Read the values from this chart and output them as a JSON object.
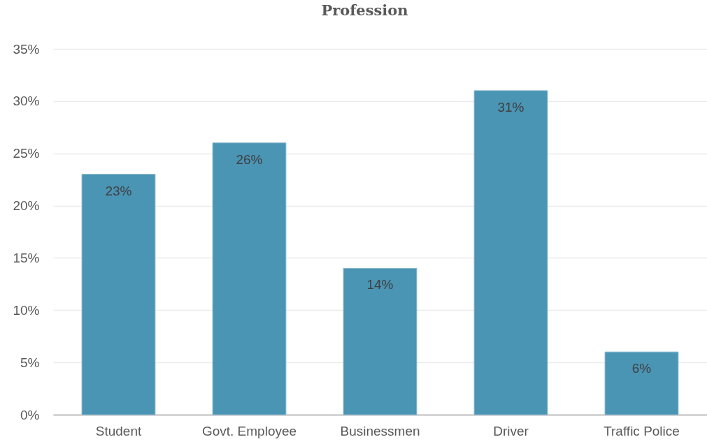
{
  "chart_data": {
    "type": "bar",
    "title": "Profession",
    "categories": [
      "Student",
      "Govt. Employee",
      "Businessmen",
      "Driver",
      "Traffic Police"
    ],
    "values": [
      23,
      26,
      14,
      31,
      6
    ],
    "color": "#4a94b4",
    "value_labels": [
      "23%",
      "26%",
      "14%",
      "31%",
      "6%"
    ],
    "ylim": [
      0,
      35
    ],
    "yticks": [
      {
        "value": 0,
        "label": "0%"
      },
      {
        "value": 5,
        "label": "5%"
      },
      {
        "value": 10,
        "label": "10%"
      },
      {
        "value": 15,
        "label": "15%"
      },
      {
        "value": 20,
        "label": "20%"
      },
      {
        "value": 25,
        "label": "25%"
      },
      {
        "value": 30,
        "label": "30%"
      },
      {
        "value": 35,
        "label": "35%"
      }
    ],
    "grid": "y"
  }
}
